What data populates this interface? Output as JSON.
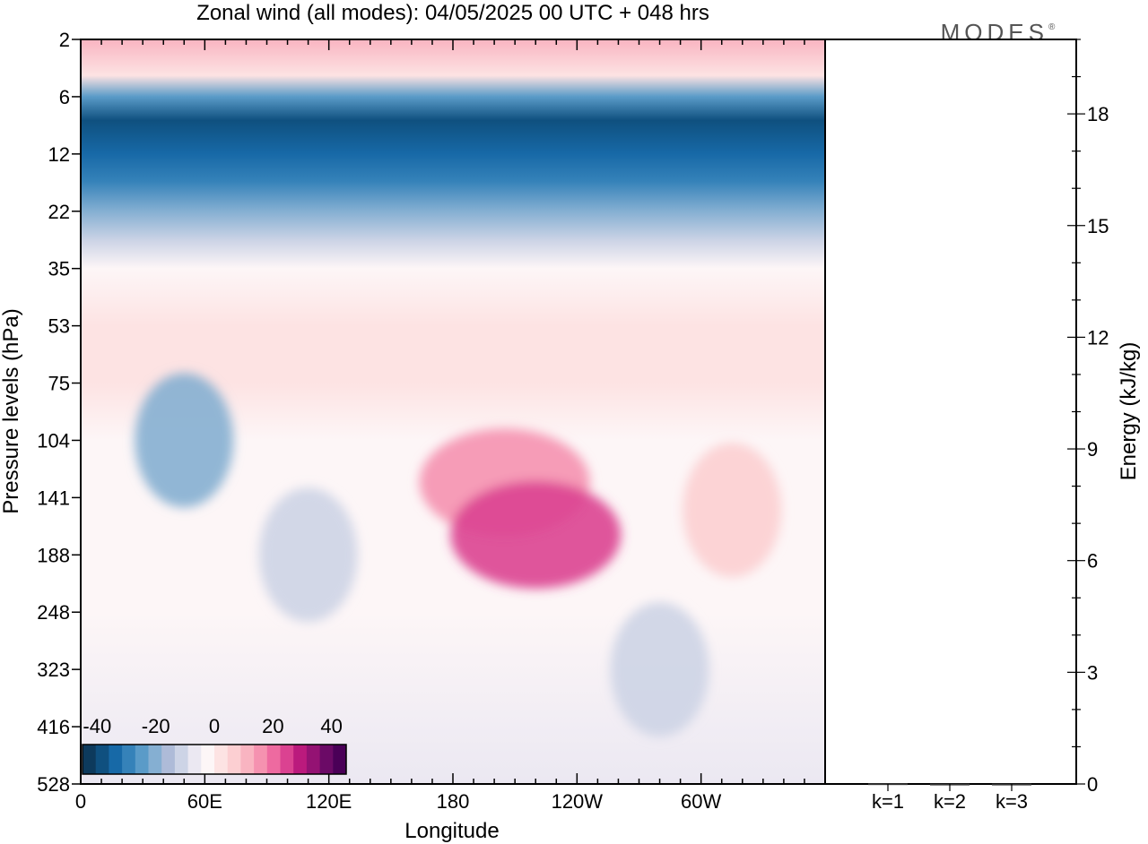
{
  "title": "Zonal wind (all modes):  04/05/2025  00 UTC  + 048 hrs",
  "logo_text": "MODES",
  "logo_mark": "®",
  "chart_data": [
    {
      "type": "heatmap",
      "title": "Zonal wind (all modes):  04/05/2025  00 UTC  + 048 hrs",
      "xlabel": "Longitude",
      "ylabel": "Pressure levels (hPa)",
      "x_ticks": [
        "0",
        "60E",
        "120E",
        "180",
        "120W",
        "60W"
      ],
      "x_tick_values": [
        0,
        60,
        120,
        180,
        240,
        300
      ],
      "xlim": [
        0,
        360
      ],
      "y_ticks": [
        "2",
        "6",
        "12",
        "22",
        "35",
        "53",
        "75",
        "104",
        "141",
        "188",
        "248",
        "323",
        "416",
        "528"
      ],
      "y_scale": "model levels (top 2 hPa, bottom 528 hPa)",
      "colorbar": {
        "ticks": [
          "-40",
          "-20",
          "0",
          "20",
          "40"
        ],
        "range": [
          -45,
          45
        ],
        "step": 5,
        "colors": [
          "#0d3a5c",
          "#0f507f",
          "#1769a7",
          "#3582b9",
          "#5a9bc8",
          "#85afd2",
          "#aebbd8",
          "#cdd4e6",
          "#ebe8f2",
          "#fdf6f7",
          "#fde3e3",
          "#fccfd2",
          "#f9b4c1",
          "#f592b0",
          "#ee6aa0",
          "#db4291",
          "#bb1a7d",
          "#941273",
          "#6b0a66",
          "#4a0057"
        ]
      },
      "bands": [
        {
          "level": "2 hPa",
          "u": 15
        },
        {
          "level": "4 hPa",
          "u": 5
        },
        {
          "level": "6 hPa",
          "u": -25
        },
        {
          "level": "8 hPa",
          "u": -38
        },
        {
          "level": "12 hPa",
          "u": -32
        },
        {
          "level": "16 hPa",
          "u": -26
        },
        {
          "level": "22 hPa",
          "u": -18
        },
        {
          "level": "28 hPa",
          "u": -8
        },
        {
          "level": "35 hPa",
          "u": 2
        },
        {
          "level": "53 hPa",
          "u": 8
        },
        {
          "level": "75 hPa",
          "u": 5
        },
        {
          "level": "104 hPa",
          "u": 3
        },
        {
          "level": "141 hPa",
          "u": 2
        },
        {
          "level": "248 hPa",
          "u": 0
        },
        {
          "level": "528 hPa",
          "u": -2
        }
      ],
      "features": [
        {
          "lon": 50,
          "level": "104 hPa",
          "u": -18
        },
        {
          "lon": 110,
          "level": "188 hPa",
          "u": -10
        },
        {
          "lon": 205,
          "level": "130 hPa",
          "u": 22
        },
        {
          "lon": 220,
          "level": "170 hPa",
          "u": 30
        },
        {
          "lon": 315,
          "level": "150 hPa",
          "u": 12
        },
        {
          "lon": 280,
          "level": "323 hPa",
          "u": -6
        }
      ]
    },
    {
      "type": "bar",
      "ylabel": "Energy (kJ/kg)",
      "categories": [
        "k=1",
        "k=2",
        "k=3"
      ],
      "values": [
        0.02,
        0.01,
        0.01
      ],
      "ylim": [
        0,
        20
      ],
      "y_ticks": [
        0,
        3,
        6,
        9,
        12,
        15,
        18
      ]
    }
  ]
}
